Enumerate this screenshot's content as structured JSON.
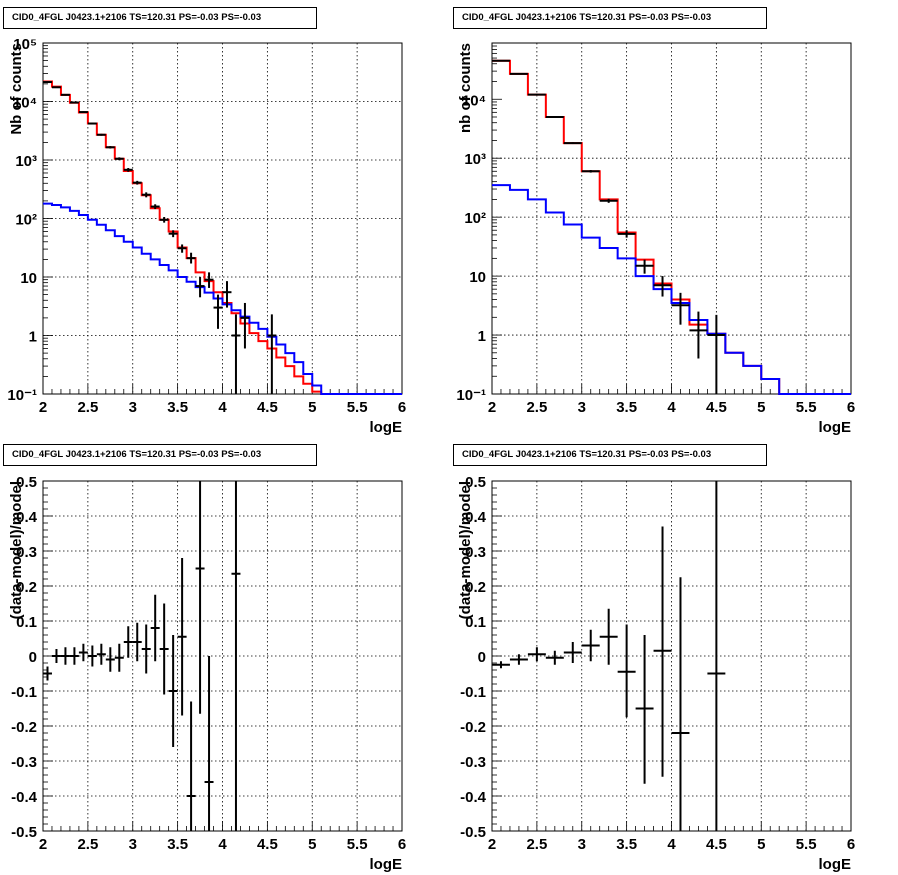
{
  "panels": [
    {
      "title": "CID0_4FGL J0423.1+2106 TS=120.31 PS=-0.03 PS=-0.03",
      "chart_data": {
        "type": "line",
        "xlabel": "logE",
        "ylabel": "Nb of counts",
        "xlim": [
          2,
          6
        ],
        "ylim": [
          0.1,
          100000
        ],
        "yscale": "log",
        "grid": true,
        "x_ticks": [
          "2",
          "2.5",
          "3",
          "3.5",
          "4",
          "4.5",
          "5",
          "5.5",
          "6"
        ],
        "y_ticks": [
          "10⁻¹",
          "1",
          "10",
          "10²",
          "10³",
          "10⁴",
          "10⁵"
        ],
        "bin_edges": [
          2.0,
          2.1,
          2.2,
          2.3,
          2.4,
          2.5,
          2.6,
          2.7,
          2.8,
          2.9,
          3.0,
          3.1,
          3.2,
          3.3,
          3.4,
          3.5,
          3.6,
          3.7,
          3.8,
          3.9,
          4.0,
          4.1,
          4.2,
          4.3,
          4.4,
          4.5,
          4.6,
          4.7,
          4.8,
          4.9,
          5.0,
          5.1,
          5.2,
          5.3,
          5.4,
          5.5,
          5.6,
          5.7,
          5.8,
          5.9,
          6.0
        ],
        "series": [
          {
            "color": "#ff0000",
            "values": [
              22000,
              18000,
              13000,
              9500,
              6500,
              4200,
              2700,
              1650,
              1050,
              650,
              400,
              250,
              150,
              95,
              60,
              32,
              21,
              12,
              8.5,
              5.5,
              3.6,
              2.4,
              1.6,
              1.1,
              0.8,
              0.6,
              0.42,
              0.3,
              0.2,
              0.15,
              0.11,
              0.1,
              0.1,
              0.1,
              0.1,
              0.1,
              0.1,
              0.1,
              0.1,
              0.1
            ]
          },
          {
            "color": "#0000ff",
            "values": [
              180,
              170,
              155,
              135,
              115,
              95,
              78,
              63,
              50,
              40,
              32,
              25,
              20,
              16,
              13,
              10,
              8.3,
              6.7,
              5.4,
              4.3,
              3.4,
              2.7,
              2.1,
              1.65,
              1.3,
              0.95,
              0.7,
              0.5,
              0.35,
              0.22,
              0.14,
              0.1,
              0.1,
              0.1,
              0.1,
              0.1,
              0.1,
              0.1,
              0.1,
              0.1
            ]
          }
        ],
        "data_points": [
          {
            "x": 2.05,
            "y": 21500,
            "ylo": 21000,
            "yhi": 22000
          },
          {
            "x": 2.15,
            "y": 17500,
            "ylo": 17000,
            "yhi": 18000
          },
          {
            "x": 2.25,
            "y": 13000,
            "ylo": 12600,
            "yhi": 13400
          },
          {
            "x": 2.35,
            "y": 9600,
            "ylo": 9300,
            "yhi": 9900
          },
          {
            "x": 2.45,
            "y": 6600,
            "ylo": 6400,
            "yhi": 6800
          },
          {
            "x": 2.55,
            "y": 4200,
            "ylo": 4050,
            "yhi": 4350
          },
          {
            "x": 2.65,
            "y": 2700,
            "ylo": 2600,
            "yhi": 2800
          },
          {
            "x": 2.75,
            "y": 1650,
            "ylo": 1570,
            "yhi": 1730
          },
          {
            "x": 2.85,
            "y": 1050,
            "ylo": 990,
            "yhi": 1110
          },
          {
            "x": 2.95,
            "y": 680,
            "ylo": 630,
            "yhi": 730
          },
          {
            "x": 3.05,
            "y": 410,
            "ylo": 380,
            "yhi": 440
          },
          {
            "x": 3.15,
            "y": 255,
            "ylo": 230,
            "yhi": 280
          },
          {
            "x": 3.25,
            "y": 160,
            "ylo": 145,
            "yhi": 175
          },
          {
            "x": 3.35,
            "y": 95,
            "ylo": 85,
            "yhi": 106
          },
          {
            "x": 3.45,
            "y": 55,
            "ylo": 48,
            "yhi": 63
          },
          {
            "x": 3.55,
            "y": 31,
            "ylo": 26,
            "yhi": 36
          },
          {
            "x": 3.65,
            "y": 21,
            "ylo": 17,
            "yhi": 26
          },
          {
            "x": 3.75,
            "y": 7,
            "ylo": 4.5,
            "yhi": 10
          },
          {
            "x": 3.85,
            "y": 9,
            "ylo": 6.5,
            "yhi": 12
          },
          {
            "x": 3.95,
            "y": 3,
            "ylo": 1.3,
            "yhi": 5
          },
          {
            "x": 4.05,
            "y": 5.5,
            "ylo": 3,
            "yhi": 8.5
          },
          {
            "x": 4.15,
            "y": 1,
            "ylo": 0.1,
            "yhi": 2.3
          },
          {
            "x": 4.25,
            "y": 2,
            "ylo": 0.6,
            "yhi": 3.6
          },
          {
            "x": 4.55,
            "y": 1,
            "ylo": 0.1,
            "yhi": 2.3
          }
        ]
      }
    },
    {
      "title": "CID0_4FGL J0423.1+2106 TS=120.31 PS=-0.03 PS=-0.03",
      "chart_data": {
        "type": "line",
        "xlabel": "logE",
        "ylabel": "nb of counts",
        "xlim": [
          2,
          6
        ],
        "ylim": [
          0.1,
          90000
        ],
        "yscale": "log",
        "grid": true,
        "x_ticks": [
          "2",
          "2.5",
          "3",
          "3.5",
          "4",
          "4.5",
          "5",
          "5.5",
          "6"
        ],
        "y_ticks": [
          "10⁻¹",
          "1",
          "10",
          "10²",
          "10³",
          "10⁴"
        ],
        "bin_edges": [
          2.0,
          2.2,
          2.4,
          2.6,
          2.8,
          3.0,
          3.2,
          3.4,
          3.6,
          3.8,
          4.0,
          4.2,
          4.4,
          4.6,
          4.8,
          5.0,
          5.2,
          5.4,
          5.6,
          5.8,
          6.0
        ],
        "series": [
          {
            "color": "#ff0000",
            "values": [
              45000,
              27000,
              12000,
              5000,
              1800,
              600,
              200,
              55,
              19,
              7.5,
              4,
              1.5,
              1.05,
              0.5,
              0.3,
              0.18,
              0.1,
              0.1,
              0.1,
              0.1
            ]
          },
          {
            "color": "#0000ff",
            "values": [
              350,
              290,
              200,
              120,
              75,
              45,
              30,
              20,
              10,
              6,
              3.5,
              1.8,
              1.05,
              0.5,
              0.3,
              0.18,
              0.1,
              0.1,
              0.1,
              0.1
            ]
          }
        ],
        "data_points": [
          {
            "x": 2.1,
            "y": 45000,
            "ylo": 44500,
            "yhi": 45500
          },
          {
            "x": 2.3,
            "y": 27000,
            "ylo": 26600,
            "yhi": 27400
          },
          {
            "x": 2.5,
            "y": 12000,
            "ylo": 11700,
            "yhi": 12300
          },
          {
            "x": 2.7,
            "y": 5000,
            "ylo": 4850,
            "yhi": 5150
          },
          {
            "x": 2.9,
            "y": 1800,
            "ylo": 1740,
            "yhi": 1860
          },
          {
            "x": 3.1,
            "y": 600,
            "ylo": 570,
            "yhi": 630
          },
          {
            "x": 3.3,
            "y": 190,
            "ylo": 175,
            "yhi": 205
          },
          {
            "x": 3.5,
            "y": 52,
            "ylo": 45,
            "yhi": 60
          },
          {
            "x": 3.7,
            "y": 15,
            "ylo": 11,
            "yhi": 19
          },
          {
            "x": 3.9,
            "y": 7,
            "ylo": 4.5,
            "yhi": 10
          },
          {
            "x": 4.1,
            "y": 3.2,
            "ylo": 1.5,
            "yhi": 5.2
          },
          {
            "x": 4.3,
            "y": 1.2,
            "ylo": 0.4,
            "yhi": 2.5
          },
          {
            "x": 4.5,
            "y": 1,
            "ylo": 0.1,
            "yhi": 2.2
          }
        ]
      }
    },
    {
      "title": "CID0_4FGL J0423.1+2106 TS=120.31 PS=-0.03 PS=-0.03",
      "chart_data": {
        "type": "scatter",
        "xlabel": "logE",
        "ylabel": "(data-model)/model",
        "xlim": [
          2,
          6
        ],
        "ylim": [
          -0.5,
          0.5
        ],
        "yscale": "linear",
        "grid": true,
        "x_ticks": [
          "2",
          "2.5",
          "3",
          "3.5",
          "4",
          "4.5",
          "5",
          "5.5",
          "6"
        ],
        "y_ticks": [
          "-0.5",
          "-0.4",
          "-0.3",
          "-0.2",
          "-0.1",
          "0",
          "0.1",
          "0.2",
          "0.3",
          "0.4",
          "0.5"
        ],
        "points": [
          {
            "x": 2.05,
            "y": -0.05,
            "ylo": -0.07,
            "yhi": -0.03,
            "xw": 0.05
          },
          {
            "x": 2.15,
            "y": 0.0,
            "ylo": -0.02,
            "yhi": 0.02,
            "xw": 0.05
          },
          {
            "x": 2.25,
            "y": 0.0,
            "ylo": -0.025,
            "yhi": 0.025,
            "xw": 0.05
          },
          {
            "x": 2.35,
            "y": 0.0,
            "ylo": -0.025,
            "yhi": 0.025,
            "xw": 0.05
          },
          {
            "x": 2.45,
            "y": 0.01,
            "ylo": -0.015,
            "yhi": 0.035,
            "xw": 0.05
          },
          {
            "x": 2.55,
            "y": 0.0,
            "ylo": -0.03,
            "yhi": 0.03,
            "xw": 0.05
          },
          {
            "x": 2.65,
            "y": 0.005,
            "ylo": -0.025,
            "yhi": 0.035,
            "xw": 0.05
          },
          {
            "x": 2.75,
            "y": -0.01,
            "ylo": -0.045,
            "yhi": 0.025,
            "xw": 0.05
          },
          {
            "x": 2.85,
            "y": -0.005,
            "ylo": -0.045,
            "yhi": 0.035,
            "xw": 0.05
          },
          {
            "x": 2.95,
            "y": 0.04,
            "ylo": -0.005,
            "yhi": 0.085,
            "xw": 0.05
          },
          {
            "x": 3.05,
            "y": 0.04,
            "ylo": -0.015,
            "yhi": 0.095,
            "xw": 0.05
          },
          {
            "x": 3.15,
            "y": 0.02,
            "ylo": -0.05,
            "yhi": 0.09,
            "xw": 0.05
          },
          {
            "x": 3.25,
            "y": 0.08,
            "ylo": -0.015,
            "yhi": 0.175,
            "xw": 0.05
          },
          {
            "x": 3.35,
            "y": 0.02,
            "ylo": -0.11,
            "yhi": 0.15,
            "xw": 0.05
          },
          {
            "x": 3.45,
            "y": -0.1,
            "ylo": -0.26,
            "yhi": 0.06,
            "xw": 0.05
          },
          {
            "x": 3.55,
            "y": 0.055,
            "ylo": -0.17,
            "yhi": 0.28,
            "xw": 0.05
          },
          {
            "x": 3.65,
            "y": -0.4,
            "ylo": -0.5,
            "yhi": -0.13,
            "xw": 0.05
          },
          {
            "x": 3.75,
            "y": 0.25,
            "ylo": -0.165,
            "yhi": 0.5,
            "xw": 0.05
          },
          {
            "x": 3.85,
            "y": -0.36,
            "ylo": -0.5,
            "yhi": 0.0,
            "xw": 0.05
          },
          {
            "x": 4.15,
            "y": 0.235,
            "ylo": -0.5,
            "yhi": 0.5,
            "xw": 0.05
          }
        ]
      }
    },
    {
      "title": "CID0_4FGL J0423.1+2106 TS=120.31 PS=-0.03 PS=-0.03",
      "chart_data": {
        "type": "scatter",
        "xlabel": "logE",
        "ylabel": "(data-model)/model",
        "xlim": [
          2,
          6
        ],
        "ylim": [
          -0.5,
          0.5
        ],
        "yscale": "linear",
        "grid": true,
        "x_ticks": [
          "2",
          "2.5",
          "3",
          "3.5",
          "4",
          "4.5",
          "5",
          "5.5",
          "6"
        ],
        "y_ticks": [
          "-0.5",
          "-0.4",
          "-0.3",
          "-0.2",
          "-0.1",
          "0",
          "0.1",
          "0.2",
          "0.3",
          "0.4",
          "0.5"
        ],
        "points": [
          {
            "x": 2.1,
            "y": -0.025,
            "ylo": -0.035,
            "yhi": -0.015,
            "xw": 0.1
          },
          {
            "x": 2.3,
            "y": -0.01,
            "ylo": -0.025,
            "yhi": 0.005,
            "xw": 0.1
          },
          {
            "x": 2.5,
            "y": 0.005,
            "ylo": -0.015,
            "yhi": 0.025,
            "xw": 0.1
          },
          {
            "x": 2.7,
            "y": -0.005,
            "ylo": -0.025,
            "yhi": 0.015,
            "xw": 0.1
          },
          {
            "x": 2.9,
            "y": 0.01,
            "ylo": -0.02,
            "yhi": 0.04,
            "xw": 0.1
          },
          {
            "x": 3.1,
            "y": 0.03,
            "ylo": -0.015,
            "yhi": 0.075,
            "xw": 0.1
          },
          {
            "x": 3.3,
            "y": 0.055,
            "ylo": -0.025,
            "yhi": 0.135,
            "xw": 0.1
          },
          {
            "x": 3.5,
            "y": -0.045,
            "ylo": -0.175,
            "yhi": 0.09,
            "xw": 0.1
          },
          {
            "x": 3.7,
            "y": -0.15,
            "ylo": -0.365,
            "yhi": 0.06,
            "xw": 0.1
          },
          {
            "x": 3.9,
            "y": 0.015,
            "ylo": -0.345,
            "yhi": 0.37,
            "xw": 0.1
          },
          {
            "x": 4.1,
            "y": -0.22,
            "ylo": -0.5,
            "yhi": 0.225,
            "xw": 0.1
          },
          {
            "x": 4.5,
            "y": -0.05,
            "ylo": -0.5,
            "yhi": 0.5,
            "xw": 0.1
          }
        ]
      }
    }
  ]
}
